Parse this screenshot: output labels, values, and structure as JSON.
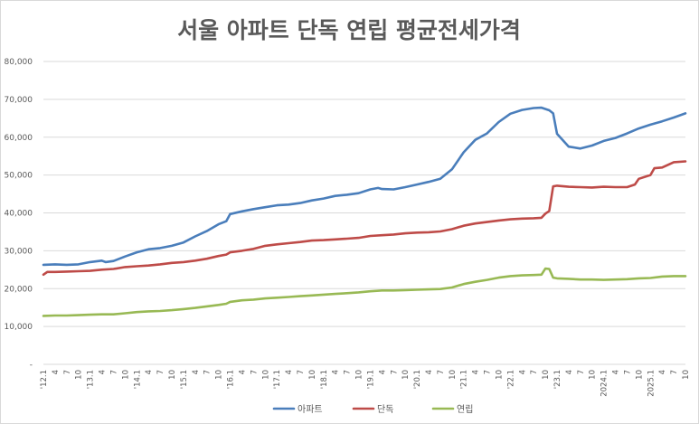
{
  "chart_data": {
    "type": "line",
    "title": "서울 아파트 단독 연립 평균전세가격",
    "ylim": [
      0,
      80000
    ],
    "y_ticks": [
      {
        "value": 0,
        "label": "-"
      },
      {
        "value": 10000,
        "label": "10,000"
      },
      {
        "value": 20000,
        "label": "20,000"
      },
      {
        "value": 30000,
        "label": "30,000"
      },
      {
        "value": 40000,
        "label": "40,000"
      },
      {
        "value": 50000,
        "label": "50,000"
      },
      {
        "value": 60000,
        "label": "60,000"
      },
      {
        "value": 70000,
        "label": "70,000"
      },
      {
        "value": 80000,
        "label": "80,000"
      }
    ],
    "x_tick_labels": [
      "'12.1",
      "4",
      "7",
      "10",
      "'13.1",
      "4",
      "7",
      "10",
      "'14.1",
      "4",
      "7",
      "10",
      "'15.1",
      "4",
      "7",
      "10",
      "'16.1",
      "4",
      "7",
      "10",
      "'17.1",
      "4",
      "7",
      "10",
      "'18.1",
      "4",
      "7",
      "10",
      "'19.1",
      "4",
      "7",
      "10",
      "'20.1",
      "4",
      "7",
      "10",
      "'21.1",
      "4",
      "7",
      "10",
      "'22.1",
      "4",
      "7",
      "10",
      "'23.1",
      "4",
      "7",
      "10",
      "2024.1",
      "4",
      "7",
      "10",
      "2025.1",
      "4",
      "7",
      "10"
    ],
    "x_range": [
      "2012-01",
      "2025-10"
    ],
    "grid": true,
    "legend_position": "bottom",
    "series": [
      {
        "name": "아파트",
        "color": "#4a7ebb",
        "points": [
          [
            "2012-01",
            26300
          ],
          [
            "2012-04",
            26400
          ],
          [
            "2012-07",
            26300
          ],
          [
            "2012-10",
            26400
          ],
          [
            "2013-01",
            27000
          ],
          [
            "2013-04",
            27400
          ],
          [
            "2013-05",
            27000
          ],
          [
            "2013-07",
            27300
          ],
          [
            "2013-10",
            28500
          ],
          [
            "2014-01",
            29600
          ],
          [
            "2014-04",
            30400
          ],
          [
            "2014-07",
            30700
          ],
          [
            "2014-10",
            31300
          ],
          [
            "2015-01",
            32200
          ],
          [
            "2015-04",
            33800
          ],
          [
            "2015-07",
            35200
          ],
          [
            "2015-10",
            37000
          ],
          [
            "2015-12",
            37800
          ],
          [
            "2016-01",
            39700
          ],
          [
            "2016-04",
            40400
          ],
          [
            "2016-07",
            41000
          ],
          [
            "2016-10",
            41500
          ],
          [
            "2017-01",
            42000
          ],
          [
            "2017-04",
            42200
          ],
          [
            "2017-07",
            42600
          ],
          [
            "2017-10",
            43300
          ],
          [
            "2018-01",
            43800
          ],
          [
            "2018-04",
            44500
          ],
          [
            "2018-07",
            44800
          ],
          [
            "2018-10",
            45200
          ],
          [
            "2019-01",
            46200
          ],
          [
            "2019-03",
            46600
          ],
          [
            "2019-04",
            46300
          ],
          [
            "2019-07",
            46200
          ],
          [
            "2019-10",
            46800
          ],
          [
            "2020-01",
            47500
          ],
          [
            "2020-04",
            48200
          ],
          [
            "2020-07",
            49000
          ],
          [
            "2020-10",
            51500
          ],
          [
            "2021-01",
            56000
          ],
          [
            "2021-04",
            59300
          ],
          [
            "2021-07",
            61000
          ],
          [
            "2021-10",
            64000
          ],
          [
            "2022-01",
            66200
          ],
          [
            "2022-04",
            67200
          ],
          [
            "2022-07",
            67700
          ],
          [
            "2022-09",
            67800
          ],
          [
            "2022-11",
            67100
          ],
          [
            "2022-12",
            66300
          ],
          [
            "2023-01",
            60900
          ],
          [
            "2023-04",
            57500
          ],
          [
            "2023-07",
            57000
          ],
          [
            "2023-10",
            57800
          ],
          [
            "2024-01",
            59000
          ],
          [
            "2024-04",
            59800
          ],
          [
            "2024-07",
            61000
          ],
          [
            "2024-10",
            62300
          ],
          [
            "2025-01",
            63300
          ],
          [
            "2025-04",
            64200
          ],
          [
            "2025-07",
            65200
          ],
          [
            "2025-10",
            66300
          ]
        ]
      },
      {
        "name": "단독",
        "color": "#be4b48",
        "points": [
          [
            "2012-01",
            23700
          ],
          [
            "2012-02",
            24400
          ],
          [
            "2012-04",
            24400
          ],
          [
            "2012-07",
            24500
          ],
          [
            "2012-10",
            24600
          ],
          [
            "2013-01",
            24700
          ],
          [
            "2013-04",
            25000
          ],
          [
            "2013-07",
            25200
          ],
          [
            "2013-10",
            25700
          ],
          [
            "2014-01",
            25900
          ],
          [
            "2014-04",
            26100
          ],
          [
            "2014-07",
            26400
          ],
          [
            "2014-10",
            26800
          ],
          [
            "2015-01",
            27000
          ],
          [
            "2015-04",
            27400
          ],
          [
            "2015-07",
            27900
          ],
          [
            "2015-10",
            28600
          ],
          [
            "2015-12",
            29000
          ],
          [
            "2016-01",
            29600
          ],
          [
            "2016-04",
            30000
          ],
          [
            "2016-07",
            30500
          ],
          [
            "2016-10",
            31300
          ],
          [
            "2017-01",
            31700
          ],
          [
            "2017-04",
            32000
          ],
          [
            "2017-07",
            32300
          ],
          [
            "2017-10",
            32700
          ],
          [
            "2018-01",
            32800
          ],
          [
            "2018-04",
            33000
          ],
          [
            "2018-07",
            33200
          ],
          [
            "2018-10",
            33400
          ],
          [
            "2019-01",
            33900
          ],
          [
            "2019-04",
            34100
          ],
          [
            "2019-07",
            34300
          ],
          [
            "2019-10",
            34600
          ],
          [
            "2020-01",
            34800
          ],
          [
            "2020-04",
            34900
          ],
          [
            "2020-07",
            35100
          ],
          [
            "2020-10",
            35700
          ],
          [
            "2021-01",
            36600
          ],
          [
            "2021-04",
            37200
          ],
          [
            "2021-07",
            37600
          ],
          [
            "2021-10",
            38000
          ],
          [
            "2022-01",
            38300
          ],
          [
            "2022-04",
            38500
          ],
          [
            "2022-07",
            38600
          ],
          [
            "2022-09",
            38700
          ],
          [
            "2022-10",
            39800
          ],
          [
            "2022-11",
            40500
          ],
          [
            "2022-12",
            47000
          ],
          [
            "2023-01",
            47200
          ],
          [
            "2023-04",
            46900
          ],
          [
            "2023-07",
            46800
          ],
          [
            "2023-10",
            46700
          ],
          [
            "2024-01",
            46900
          ],
          [
            "2024-04",
            46800
          ],
          [
            "2024-07",
            46800
          ],
          [
            "2024-09",
            47500
          ],
          [
            "2024-10",
            49000
          ],
          [
            "2025-01",
            50000
          ],
          [
            "2025-02",
            51800
          ],
          [
            "2025-04",
            52000
          ],
          [
            "2025-07",
            53400
          ],
          [
            "2025-10",
            53600
          ]
        ]
      },
      {
        "name": "연립",
        "color": "#98b954",
        "points": [
          [
            "2012-01",
            12800
          ],
          [
            "2012-04",
            12900
          ],
          [
            "2012-07",
            12900
          ],
          [
            "2012-10",
            13000
          ],
          [
            "2013-01",
            13100
          ],
          [
            "2013-04",
            13200
          ],
          [
            "2013-07",
            13200
          ],
          [
            "2013-10",
            13500
          ],
          [
            "2014-01",
            13800
          ],
          [
            "2014-04",
            14000
          ],
          [
            "2014-07",
            14100
          ],
          [
            "2014-10",
            14300
          ],
          [
            "2015-01",
            14600
          ],
          [
            "2015-04",
            14900
          ],
          [
            "2015-07",
            15300
          ],
          [
            "2015-10",
            15700
          ],
          [
            "2015-12",
            16000
          ],
          [
            "2016-01",
            16500
          ],
          [
            "2016-04",
            16900
          ],
          [
            "2016-07",
            17100
          ],
          [
            "2016-10",
            17400
          ],
          [
            "2017-01",
            17600
          ],
          [
            "2017-04",
            17800
          ],
          [
            "2017-07",
            18000
          ],
          [
            "2017-10",
            18200
          ],
          [
            "2018-01",
            18400
          ],
          [
            "2018-04",
            18600
          ],
          [
            "2018-07",
            18800
          ],
          [
            "2018-10",
            19000
          ],
          [
            "2019-01",
            19300
          ],
          [
            "2019-04",
            19500
          ],
          [
            "2019-07",
            19500
          ],
          [
            "2019-10",
            19600
          ],
          [
            "2020-01",
            19700
          ],
          [
            "2020-04",
            19800
          ],
          [
            "2020-07",
            19900
          ],
          [
            "2020-10",
            20300
          ],
          [
            "2021-01",
            21200
          ],
          [
            "2021-04",
            21800
          ],
          [
            "2021-07",
            22300
          ],
          [
            "2021-10",
            22900
          ],
          [
            "2022-01",
            23300
          ],
          [
            "2022-04",
            23500
          ],
          [
            "2022-07",
            23600
          ],
          [
            "2022-09",
            23700
          ],
          [
            "2022-10",
            25300
          ],
          [
            "2022-11",
            25200
          ],
          [
            "2022-12",
            22900
          ],
          [
            "2023-01",
            22700
          ],
          [
            "2023-04",
            22600
          ],
          [
            "2023-07",
            22400
          ],
          [
            "2023-10",
            22400
          ],
          [
            "2024-01",
            22300
          ],
          [
            "2024-04",
            22400
          ],
          [
            "2024-07",
            22500
          ],
          [
            "2024-10",
            22700
          ],
          [
            "2025-01",
            22800
          ],
          [
            "2025-04",
            23200
          ],
          [
            "2025-07",
            23300
          ],
          [
            "2025-10",
            23300
          ]
        ]
      }
    ]
  }
}
